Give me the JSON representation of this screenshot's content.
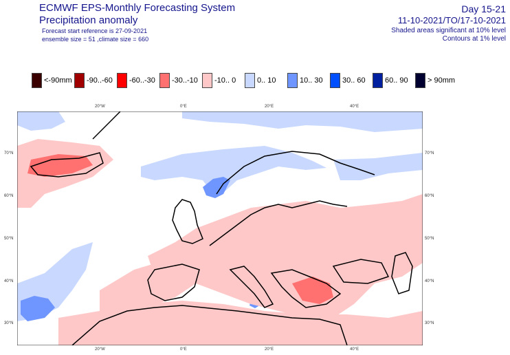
{
  "header": {
    "title": "ECMWF EPS-Monthly Forecasting System",
    "subtitle": "Precipitation anomaly",
    "forecast_ref": "Forecast start reference is 27-09-2021",
    "ensemble": "ensemble size = 51  ,climate size = 660",
    "day_range": "Day 15-21",
    "date_range": "11-10-2021/TO/17-10-2021",
    "shading_note": "Shaded areas significant at 10% level",
    "contour_note": "Contours at 1% level"
  },
  "legend": [
    {
      "label": "<-90mm",
      "color": "#3a0000"
    },
    {
      "label": "-90..-60",
      "color": "#a00000"
    },
    {
      "label": "-60..-30",
      "color": "#ff0000"
    },
    {
      "label": "-30..-10",
      "color": "#ff7070"
    },
    {
      "label": "-10..  0",
      "color": "#ffc8c8"
    },
    {
      "label": "0..  10",
      "color": "#c8d8ff"
    },
    {
      "label": "10..  30",
      "color": "#6f96ff"
    },
    {
      "label": "30..  60",
      "color": "#0050ff"
    },
    {
      "label": "60..  90",
      "color": "#0020a0"
    },
    {
      "label": ">  90mm",
      "color": "#000030"
    }
  ],
  "axes": {
    "top_lon": [
      "20°W",
      "0°E",
      "20°E",
      "40°E"
    ],
    "bottom_lon": [
      "20°W",
      "0°E",
      "20°E",
      "40°E"
    ],
    "left_lat": [
      "70°N",
      "60°N",
      "50°N",
      "40°N",
      "30°N"
    ],
    "right_lat": [
      "70°N",
      "60°N",
      "50°N",
      "40°N",
      "30°N"
    ]
  }
}
